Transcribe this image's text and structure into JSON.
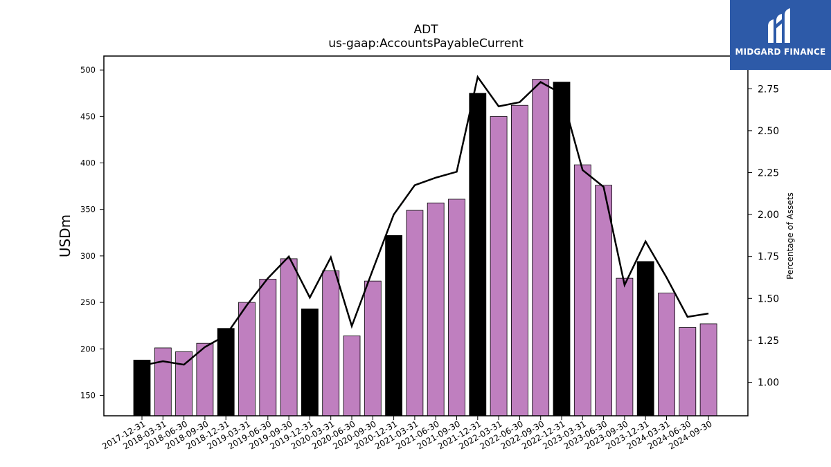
{
  "colors": {
    "annual_bar": "#000000",
    "quarter_bar": "#bf7fbf",
    "line": "#000000",
    "logo_bg": "#2d5aa8"
  },
  "logo": {
    "text": "MIDGARD FINANCE",
    "icon": "midgard-logo-icon"
  },
  "chart_data": {
    "type": "bar",
    "title": "ADT",
    "subtitle": "us-gaap:AccountsPayableCurrent",
    "ylabel": "USDm",
    "y2label": "Percentage of Assets",
    "ylim": [
      128,
      515
    ],
    "y2lim": [
      0.8,
      2.945
    ],
    "yticks": [
      150,
      200,
      250,
      300,
      350,
      400,
      450,
      500
    ],
    "y2ticks": [
      "1.00",
      "1.25",
      "1.50",
      "1.75",
      "2.00",
      "2.25",
      "2.50",
      "2.75"
    ],
    "categories": [
      "2017-12-31",
      "2018-03-31",
      "2018-06-30",
      "2018-09-30",
      "2018-12-31",
      "2019-03-31",
      "2019-06-30",
      "2019-09-30",
      "2019-12-31",
      "2020-03-31",
      "2020-06-30",
      "2020-09-30",
      "2020-12-31",
      "2021-03-31",
      "2021-06-30",
      "2021-09-30",
      "2021-12-31",
      "2022-03-31",
      "2022-06-30",
      "2022-09-30",
      "2022-12-31",
      "2023-03-31",
      "2023-06-30",
      "2023-09-30",
      "2023-12-31",
      "2024-03-31",
      "2024-06-30",
      "2024-09-30"
    ],
    "series": [
      {
        "name": "",
        "values": [
          188,
          201,
          197,
          206,
          222,
          250,
          275,
          297,
          243,
          284,
          214,
          273,
          322,
          349,
          357,
          361,
          475,
          450,
          462,
          490,
          487,
          398,
          376,
          276,
          294,
          260,
          223,
          227
        ],
        "year_end": [
          true,
          false,
          false,
          false,
          true,
          false,
          false,
          false,
          true,
          false,
          false,
          false,
          true,
          false,
          false,
          false,
          true,
          false,
          false,
          false,
          true,
          false,
          false,
          false,
          true,
          false,
          false,
          false
        ]
      },
      {
        "name": "",
        "axis": "right",
        "type": "line",
        "values": [
          1.1,
          1.125,
          1.105,
          1.21,
          1.28,
          1.46,
          1.62,
          1.75,
          1.505,
          1.745,
          1.335,
          1.67,
          2.0,
          2.175,
          2.22,
          2.255,
          2.82,
          2.645,
          2.67,
          2.79,
          2.72,
          2.265,
          2.165,
          1.58,
          1.84,
          1.625,
          1.39,
          1.41
        ]
      }
    ]
  }
}
